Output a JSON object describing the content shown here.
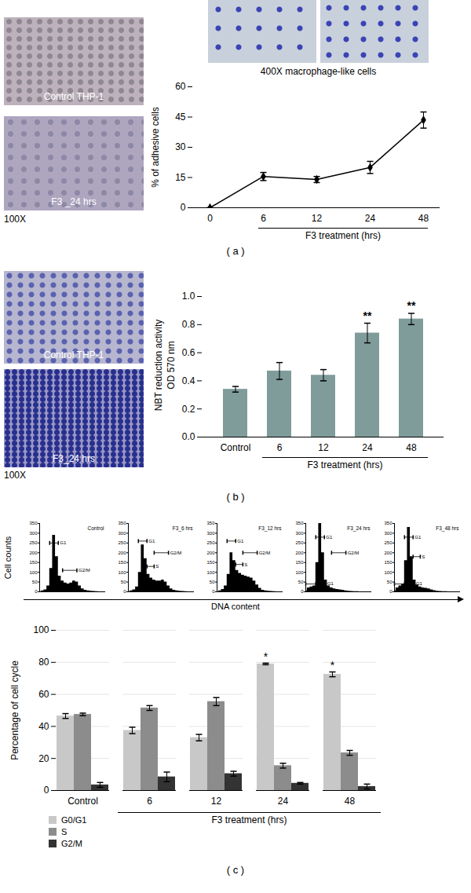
{
  "figure": {
    "panels": [
      {
        "label": "( a )",
        "photos": [
          "Control THP-1",
          "F3 _24 hrs"
        ],
        "magnification": "100X",
        "inset_caption": "400X macrophage-like cells"
      },
      {
        "label": "( b )",
        "photos": [
          "Control THP-1",
          "F3_24 hrs"
        ],
        "magnification": "100X"
      },
      {
        "label": "( c )",
        "ylabel": "Cell counts",
        "xlabel": "DNA content"
      }
    ]
  },
  "chart_data": [
    {
      "type": "line",
      "categories": [
        "0",
        "6",
        "12",
        "24",
        "48"
      ],
      "values": [
        0,
        15.5,
        14,
        20,
        43.5
      ],
      "errors": [
        0,
        2,
        1.5,
        3,
        4
      ],
      "color": "#000000",
      "marker": "diamond",
      "ylim": [
        0,
        60
      ],
      "yticks": [
        0,
        15,
        30,
        45,
        60
      ],
      "ylabel": "% of adhesive cells",
      "xlabel": "F3 treatment (hrs)"
    },
    {
      "type": "bar",
      "categories": [
        "Control",
        "6",
        "12",
        "24",
        "48"
      ],
      "values": [
        0.34,
        0.47,
        0.44,
        0.74,
        0.84
      ],
      "errors": [
        0.02,
        0.06,
        0.04,
        0.07,
        0.04
      ],
      "color": "#7f9c9b",
      "ylim": [
        0,
        1
      ],
      "yticks": [
        0,
        0.2,
        0.4,
        0.6,
        0.8,
        1
      ],
      "ylabel": [
        "NBT reduction activity",
        "OD 570 nm"
      ],
      "xlabel": "F3 treatment (hrs)",
      "annotations": [
        {
          "category": "24",
          "text": "**"
        },
        {
          "category": "48",
          "text": "**"
        }
      ]
    },
    {
      "type": "area",
      "title": "Control",
      "color": "#000000",
      "tick_labels": "y",
      "x": [
        0,
        1,
        2,
        3,
        4,
        5,
        6,
        7,
        8,
        9,
        10,
        11,
        12,
        13,
        14,
        15,
        16,
        17,
        18,
        19,
        20,
        21,
        22,
        23
      ],
      "values": [
        0,
        5,
        10,
        30,
        120,
        290,
        180,
        80,
        55,
        45,
        40,
        45,
        55,
        50,
        30,
        15,
        8,
        5,
        3,
        2,
        1,
        0,
        0,
        0
      ],
      "xlim": [
        0,
        23
      ],
      "ylim": [
        0,
        350
      ],
      "yticks": [
        0,
        50,
        100,
        150,
        200,
        250,
        300,
        350
      ],
      "gates": [
        {
          "label": "G1",
          "start": 3.5,
          "end": 6.5,
          "level": 250
        },
        {
          "label": "G2/M",
          "start": 8,
          "end": 13,
          "level": 110
        }
      ]
    },
    {
      "type": "area",
      "title": "F3_6 hrs",
      "color": "#000000",
      "tick_labels": "y",
      "x": [
        0,
        1,
        2,
        3,
        4,
        5,
        6,
        7,
        8,
        9,
        10,
        11,
        12,
        13,
        14,
        15,
        16,
        17,
        18,
        19,
        20,
        21,
        22,
        23
      ],
      "values": [
        0,
        5,
        10,
        25,
        100,
        240,
        170,
        90,
        70,
        60,
        55,
        55,
        60,
        50,
        30,
        15,
        8,
        5,
        3,
        2,
        1,
        0,
        0,
        0
      ],
      "xlim": [
        0,
        23
      ],
      "ylim": [
        0,
        350
      ],
      "yticks": [
        0,
        50,
        100,
        150,
        200,
        250,
        300,
        350
      ],
      "gates": [
        {
          "label": "G1",
          "start": 3.5,
          "end": 6.5,
          "level": 260
        },
        {
          "label": "G2/M",
          "start": 9,
          "end": 14,
          "level": 200
        },
        {
          "label": "S",
          "start": 6.5,
          "end": 9,
          "level": 130
        }
      ]
    },
    {
      "type": "area",
      "title": "F3_12 hrs",
      "color": "#000000",
      "tick_labels": "y",
      "x": [
        0,
        1,
        2,
        3,
        4,
        5,
        6,
        7,
        8,
        9,
        10,
        11,
        12,
        13,
        14,
        15,
        16,
        17,
        18,
        19,
        20,
        21,
        22,
        23
      ],
      "values": [
        0,
        5,
        12,
        30,
        90,
        200,
        160,
        110,
        95,
        85,
        80,
        75,
        70,
        55,
        35,
        18,
        8,
        5,
        3,
        2,
        1,
        0,
        0,
        0
      ],
      "xlim": [
        0,
        23
      ],
      "ylim": [
        0,
        350
      ],
      "yticks": [
        0,
        50,
        100,
        150,
        200,
        250,
        300,
        350
      ],
      "gates": [
        {
          "label": "G1",
          "start": 3.5,
          "end": 6.5,
          "level": 260
        },
        {
          "label": "G2/M",
          "start": 9,
          "end": 14,
          "level": 200
        },
        {
          "label": "S",
          "start": 6.5,
          "end": 9,
          "level": 140
        }
      ]
    },
    {
      "type": "area",
      "title": "F3_24 hrs",
      "color": "#000000",
      "tick_labels": "y",
      "x": [
        0,
        1,
        2,
        3,
        4,
        5,
        6,
        7,
        8,
        9,
        10,
        11,
        12,
        13,
        14,
        15,
        16,
        17,
        18,
        19,
        20,
        21,
        22,
        23
      ],
      "values": [
        5,
        20,
        25,
        30,
        150,
        350,
        200,
        60,
        30,
        20,
        15,
        12,
        10,
        8,
        5,
        3,
        2,
        1,
        1,
        0,
        0,
        0,
        0,
        0
      ],
      "xlim": [
        0,
        23
      ],
      "ylim": [
        0,
        350
      ],
      "yticks": [
        0,
        50,
        100,
        150,
        200,
        250,
        300,
        350
      ],
      "gates": [
        {
          "label": "G1",
          "start": 3.5,
          "end": 6.5,
          "level": 280
        },
        {
          "label": "G2/M",
          "start": 9,
          "end": 14,
          "level": 200
        },
        {
          "label": "Sub-G1",
          "start": 0,
          "end": 3.5,
          "level": 40
        }
      ]
    },
    {
      "type": "area",
      "title": "F3_48 hrs",
      "color": "#000000",
      "tick_labels": "y",
      "x": [
        0,
        1,
        2,
        3,
        4,
        5,
        6,
        7,
        8,
        9,
        10,
        11,
        12,
        13,
        14,
        15,
        16,
        17,
        18,
        19,
        20,
        21,
        22,
        23
      ],
      "values": [
        5,
        20,
        30,
        40,
        160,
        330,
        180,
        60,
        35,
        25,
        20,
        18,
        15,
        10,
        6,
        3,
        2,
        1,
        1,
        0,
        0,
        0,
        0,
        0
      ],
      "xlim": [
        0,
        23
      ],
      "ylim": [
        0,
        350
      ],
      "yticks": [
        0,
        50,
        100,
        150,
        200,
        250,
        300,
        350
      ],
      "gates": [
        {
          "label": "G1",
          "start": 3.5,
          "end": 6.5,
          "level": 280
        },
        {
          "label": "S",
          "start": 6.5,
          "end": 9,
          "level": 180
        },
        {
          "label": "Sub-G1",
          "start": 0,
          "end": 3.5,
          "level": 40
        }
      ]
    },
    {
      "type": "bar",
      "categories": [
        "Control",
        "6",
        "12",
        "24",
        "48"
      ],
      "series": [
        {
          "name": "G0/G1",
          "color": "#c8c8c8",
          "values": [
            46.5,
            37.5,
            33,
            79,
            72.5
          ],
          "errors": [
            1.5,
            2,
            2,
            0.5,
            1.5
          ]
        },
        {
          "name": "S",
          "color": "#8c8c8c",
          "values": [
            47.5,
            51.5,
            55.5,
            15.5,
            23.5
          ],
          "errors": [
            0.8,
            1.5,
            2.5,
            1.5,
            1.5
          ]
        },
        {
          "name": "G2/M",
          "color": "#333333",
          "values": [
            3.5,
            8.5,
            10.5,
            4.5,
            2.5
          ],
          "errors": [
            1.5,
            3,
            1.5,
            0.5,
            1.5
          ]
        }
      ],
      "ylim": [
        0,
        100
      ],
      "yticks": [
        0,
        20,
        40,
        60,
        80,
        100
      ],
      "grid": true,
      "legend": "bottom-left",
      "ylabel": "Percentage of cell cycle",
      "xlabel": "F3 treatment (hrs)",
      "annotations": [
        {
          "category": "24",
          "series": "G0/G1",
          "text": "*"
        },
        {
          "category": "48",
          "series": "G0/G1",
          "text": "*"
        }
      ]
    }
  ]
}
